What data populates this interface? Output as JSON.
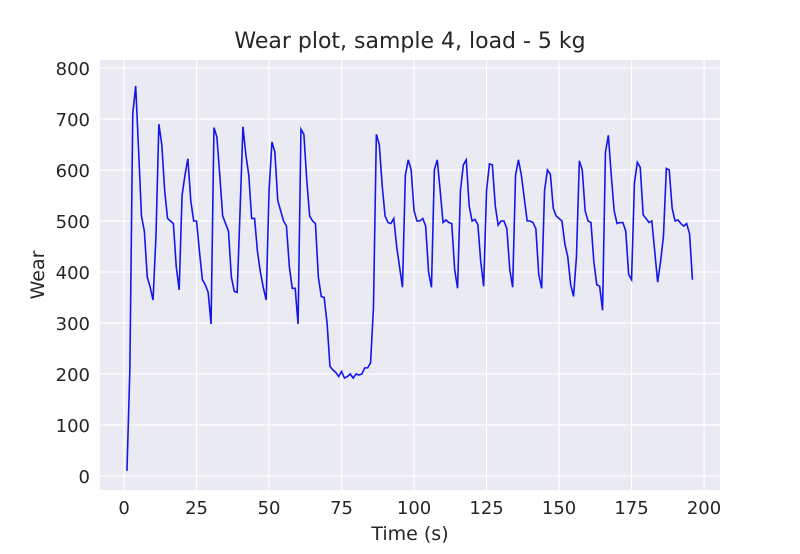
{
  "chart_data": {
    "type": "line",
    "title": "Wear plot, sample 4, load - 5 kg",
    "xlabel": "Time (s)",
    "ylabel": "Wear",
    "x": [
      1,
      2,
      3,
      4,
      5,
      6,
      7,
      8,
      9,
      10,
      11,
      12,
      13,
      14,
      15,
      16,
      17,
      18,
      19,
      20,
      21,
      22,
      23,
      24,
      25,
      26,
      27,
      28,
      29,
      30,
      31,
      32,
      33,
      34,
      35,
      36,
      37,
      38,
      39,
      40,
      41,
      42,
      43,
      44,
      45,
      46,
      47,
      48,
      49,
      50,
      51,
      52,
      53,
      54,
      55,
      56,
      57,
      58,
      59,
      60,
      61,
      62,
      63,
      64,
      65,
      66,
      67,
      68,
      69,
      70,
      71,
      72,
      73,
      74,
      75,
      76,
      77,
      78,
      79,
      80,
      81,
      82,
      83,
      84,
      85,
      86,
      87,
      88,
      89,
      90,
      91,
      92,
      93,
      94,
      95,
      96,
      97,
      98,
      99,
      100,
      101,
      102,
      103,
      104,
      105,
      106,
      107,
      108,
      109,
      110,
      111,
      112,
      113,
      114,
      115,
      116,
      117,
      118,
      119,
      120,
      121,
      122,
      123,
      124,
      125,
      126,
      127,
      128,
      129,
      130,
      131,
      132,
      133,
      134,
      135,
      136,
      137,
      138,
      139,
      140,
      141,
      142,
      143,
      144,
      145,
      146,
      147,
      148,
      149,
      150,
      151,
      152,
      153,
      154,
      155,
      156,
      157,
      158,
      159,
      160,
      161,
      162,
      163,
      164,
      165,
      166,
      167,
      168,
      169,
      170,
      171,
      172,
      173,
      174,
      175,
      176,
      177,
      178,
      179,
      180,
      181,
      182,
      183,
      184,
      185,
      186,
      187,
      188,
      189,
      190,
      191,
      192,
      193,
      194,
      195,
      196
    ],
    "series": [
      {
        "color": "#1515ee",
        "values": [
          10,
          210,
          710,
          765,
          640,
          510,
          480,
          390,
          370,
          345,
          470,
          690,
          650,
          560,
          505,
          500,
          495,
          410,
          365,
          550,
          590,
          622,
          540,
          500,
          500,
          440,
          385,
          375,
          360,
          298,
          683,
          665,
          590,
          510,
          495,
          480,
          390,
          362,
          360,
          520,
          685,
          630,
          590,
          505,
          505,
          440,
          400,
          370,
          345,
          560,
          655,
          635,
          540,
          520,
          500,
          490,
          410,
          368,
          368,
          298,
          680,
          670,
          580,
          510,
          500,
          495,
          390,
          352,
          350,
          300,
          215,
          208,
          203,
          195,
          205,
          192,
          195,
          200,
          192,
          200,
          198,
          200,
          212,
          212,
          222,
          330,
          670,
          650,
          570,
          510,
          497,
          495,
          505,
          450,
          410,
          370,
          590,
          620,
          600,
          520,
          500,
          500,
          505,
          490,
          400,
          370,
          600,
          620,
          560,
          497,
          502,
          497,
          495,
          405,
          368,
          560,
          610,
          620,
          530,
          500,
          503,
          493,
          420,
          372,
          560,
          612,
          610,
          530,
          492,
          500,
          500,
          485,
          405,
          370,
          590,
          620,
          590,
          545,
          500,
          500,
          497,
          485,
          395,
          368,
          560,
          600,
          592,
          525,
          510,
          505,
          500,
          455,
          430,
          375,
          352,
          430,
          618,
          600,
          520,
          500,
          497,
          420,
          375,
          372,
          325,
          635,
          668,
          590,
          520,
          495,
          497,
          497,
          480,
          395,
          385,
          575,
          615,
          605,
          512,
          505,
          497,
          500,
          440,
          380,
          420,
          470,
          603,
          600,
          525,
          500,
          502,
          495,
          490,
          495,
          475,
          385
        ]
      }
    ],
    "xlim": [
      -8.3,
      205.5
    ],
    "ylim": [
      -27.5,
      815.7
    ],
    "xticks": [
      0,
      25,
      50,
      75,
      100,
      125,
      150,
      175,
      200
    ],
    "yticks": [
      0,
      100,
      200,
      300,
      400,
      500,
      600,
      700,
      800
    ],
    "grid": true
  }
}
